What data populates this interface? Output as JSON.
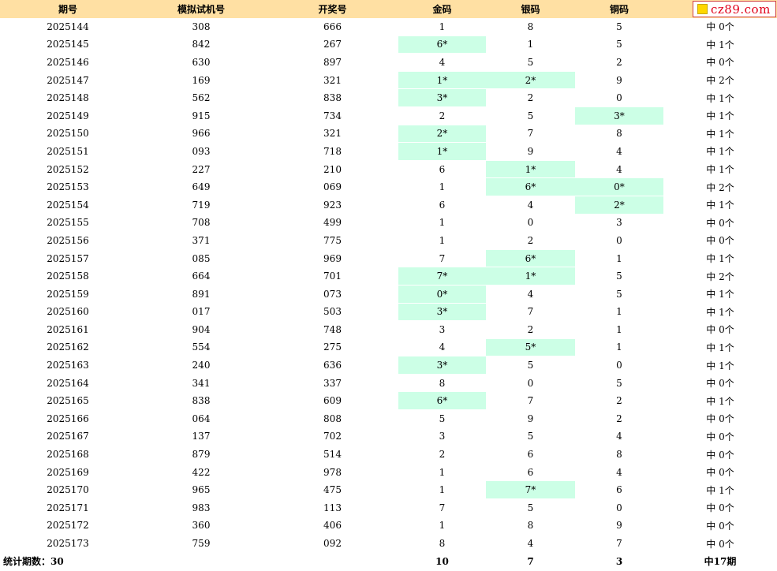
{
  "headers": [
    "期号",
    "模拟试机号",
    "开奖号",
    "金码",
    "银码",
    "铜码",
    ""
  ],
  "logo": {
    "text": "cz89.com",
    "square_color": "#ffd700"
  },
  "colors": {
    "header_bg": "#ffe0a3",
    "hit_bg": "#ccffe6",
    "logo_text": "#e0001a"
  },
  "rows": [
    {
      "issue": "2025144",
      "sim": "308",
      "draw": "666",
      "gold": "1",
      "silver": "8",
      "bronze": "5",
      "gold_hit": false,
      "silver_hit": false,
      "bronze_hit": false,
      "result": "中 0个"
    },
    {
      "issue": "2025145",
      "sim": "842",
      "draw": "267",
      "gold": "6*",
      "silver": "1",
      "bronze": "5",
      "gold_hit": true,
      "silver_hit": false,
      "bronze_hit": false,
      "result": "中 1个"
    },
    {
      "issue": "2025146",
      "sim": "630",
      "draw": "897",
      "gold": "4",
      "silver": "5",
      "bronze": "2",
      "gold_hit": false,
      "silver_hit": false,
      "bronze_hit": false,
      "result": "中 0个"
    },
    {
      "issue": "2025147",
      "sim": "169",
      "draw": "321",
      "gold": "1*",
      "silver": "2*",
      "bronze": "9",
      "gold_hit": true,
      "silver_hit": true,
      "bronze_hit": false,
      "result": "中 2个"
    },
    {
      "issue": "2025148",
      "sim": "562",
      "draw": "838",
      "gold": "3*",
      "silver": "2",
      "bronze": "0",
      "gold_hit": true,
      "silver_hit": false,
      "bronze_hit": false,
      "result": "中 1个"
    },
    {
      "issue": "2025149",
      "sim": "915",
      "draw": "734",
      "gold": "2",
      "silver": "5",
      "bronze": "3*",
      "gold_hit": false,
      "silver_hit": false,
      "bronze_hit": true,
      "result": "中 1个"
    },
    {
      "issue": "2025150",
      "sim": "966",
      "draw": "321",
      "gold": "2*",
      "silver": "7",
      "bronze": "8",
      "gold_hit": true,
      "silver_hit": false,
      "bronze_hit": false,
      "result": "中 1个"
    },
    {
      "issue": "2025151",
      "sim": "093",
      "draw": "718",
      "gold": "1*",
      "silver": "9",
      "bronze": "4",
      "gold_hit": true,
      "silver_hit": false,
      "bronze_hit": false,
      "result": "中 1个"
    },
    {
      "issue": "2025152",
      "sim": "227",
      "draw": "210",
      "gold": "6",
      "silver": "1*",
      "bronze": "4",
      "gold_hit": false,
      "silver_hit": true,
      "bronze_hit": false,
      "result": "中 1个"
    },
    {
      "issue": "2025153",
      "sim": "649",
      "draw": "069",
      "gold": "1",
      "silver": "6*",
      "bronze": "0*",
      "gold_hit": false,
      "silver_hit": true,
      "bronze_hit": true,
      "result": "中 2个"
    },
    {
      "issue": "2025154",
      "sim": "719",
      "draw": "923",
      "gold": "6",
      "silver": "4",
      "bronze": "2*",
      "gold_hit": false,
      "silver_hit": false,
      "bronze_hit": true,
      "result": "中 1个"
    },
    {
      "issue": "2025155",
      "sim": "708",
      "draw": "499",
      "gold": "1",
      "silver": "0",
      "bronze": "3",
      "gold_hit": false,
      "silver_hit": false,
      "bronze_hit": false,
      "result": "中 0个"
    },
    {
      "issue": "2025156",
      "sim": "371",
      "draw": "775",
      "gold": "1",
      "silver": "2",
      "bronze": "0",
      "gold_hit": false,
      "silver_hit": false,
      "bronze_hit": false,
      "result": "中 0个"
    },
    {
      "issue": "2025157",
      "sim": "085",
      "draw": "969",
      "gold": "7",
      "silver": "6*",
      "bronze": "1",
      "gold_hit": false,
      "silver_hit": true,
      "bronze_hit": false,
      "result": "中 1个"
    },
    {
      "issue": "2025158",
      "sim": "664",
      "draw": "701",
      "gold": "7*",
      "silver": "1*",
      "bronze": "5",
      "gold_hit": true,
      "silver_hit": true,
      "bronze_hit": false,
      "result": "中 2个"
    },
    {
      "issue": "2025159",
      "sim": "891",
      "draw": "073",
      "gold": "0*",
      "silver": "4",
      "bronze": "5",
      "gold_hit": true,
      "silver_hit": false,
      "bronze_hit": false,
      "result": "中 1个"
    },
    {
      "issue": "2025160",
      "sim": "017",
      "draw": "503",
      "gold": "3*",
      "silver": "7",
      "bronze": "1",
      "gold_hit": true,
      "silver_hit": false,
      "bronze_hit": false,
      "result": "中 1个"
    },
    {
      "issue": "2025161",
      "sim": "904",
      "draw": "748",
      "gold": "3",
      "silver": "2",
      "bronze": "1",
      "gold_hit": false,
      "silver_hit": false,
      "bronze_hit": false,
      "result": "中 0个"
    },
    {
      "issue": "2025162",
      "sim": "554",
      "draw": "275",
      "gold": "4",
      "silver": "5*",
      "bronze": "1",
      "gold_hit": false,
      "silver_hit": true,
      "bronze_hit": false,
      "result": "中 1个"
    },
    {
      "issue": "2025163",
      "sim": "240",
      "draw": "636",
      "gold": "3*",
      "silver": "5",
      "bronze": "0",
      "gold_hit": true,
      "silver_hit": false,
      "bronze_hit": false,
      "result": "中 1个"
    },
    {
      "issue": "2025164",
      "sim": "341",
      "draw": "337",
      "gold": "8",
      "silver": "0",
      "bronze": "5",
      "gold_hit": false,
      "silver_hit": false,
      "bronze_hit": false,
      "result": "中 0个"
    },
    {
      "issue": "2025165",
      "sim": "838",
      "draw": "609",
      "gold": "6*",
      "silver": "7",
      "bronze": "2",
      "gold_hit": true,
      "silver_hit": false,
      "bronze_hit": false,
      "result": "中 1个"
    },
    {
      "issue": "2025166",
      "sim": "064",
      "draw": "808",
      "gold": "5",
      "silver": "9",
      "bronze": "2",
      "gold_hit": false,
      "silver_hit": false,
      "bronze_hit": false,
      "result": "中 0个"
    },
    {
      "issue": "2025167",
      "sim": "137",
      "draw": "702",
      "gold": "3",
      "silver": "5",
      "bronze": "4",
      "gold_hit": false,
      "silver_hit": false,
      "bronze_hit": false,
      "result": "中 0个"
    },
    {
      "issue": "2025168",
      "sim": "879",
      "draw": "514",
      "gold": "2",
      "silver": "6",
      "bronze": "8",
      "gold_hit": false,
      "silver_hit": false,
      "bronze_hit": false,
      "result": "中 0个"
    },
    {
      "issue": "2025169",
      "sim": "422",
      "draw": "978",
      "gold": "1",
      "silver": "6",
      "bronze": "4",
      "gold_hit": false,
      "silver_hit": false,
      "bronze_hit": false,
      "result": "中 0个"
    },
    {
      "issue": "2025170",
      "sim": "965",
      "draw": "475",
      "gold": "1",
      "silver": "7*",
      "bronze": "6",
      "gold_hit": false,
      "silver_hit": true,
      "bronze_hit": false,
      "result": "中 1个"
    },
    {
      "issue": "2025171",
      "sim": "983",
      "draw": "113",
      "gold": "7",
      "silver": "5",
      "bronze": "0",
      "gold_hit": false,
      "silver_hit": false,
      "bronze_hit": false,
      "result": "中 0个"
    },
    {
      "issue": "2025172",
      "sim": "360",
      "draw": "406",
      "gold": "1",
      "silver": "8",
      "bronze": "9",
      "gold_hit": false,
      "silver_hit": false,
      "bronze_hit": false,
      "result": "中 0个"
    },
    {
      "issue": "2025173",
      "sim": "759",
      "draw": "092",
      "gold": "8",
      "silver": "4",
      "bronze": "7",
      "gold_hit": false,
      "silver_hit": false,
      "bronze_hit": false,
      "result": "中 0个"
    }
  ],
  "summary": {
    "label": "统计期数：30",
    "gold_total": "10",
    "silver_total": "7",
    "bronze_total": "3",
    "result_total": "中17期"
  }
}
